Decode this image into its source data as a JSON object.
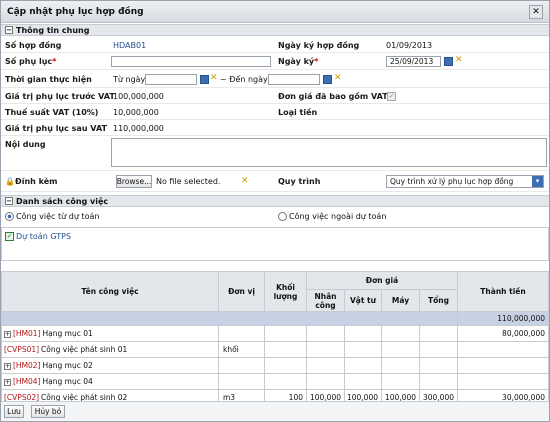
{
  "window": {
    "title": "Cập nhật phụ lục hợp đồng"
  },
  "general": {
    "section_title": "Thông tin chung",
    "contract_no_label": "Số hợp đồng",
    "contract_no": "HDAB01",
    "contract_date_label": "Ngày ký hợp đồng",
    "contract_date": "01/09/2013",
    "appendix_no_label": "Số phụ lục",
    "appendix_no": "",
    "sign_date_label": "Ngày ký",
    "sign_date": "25/09/2013",
    "period_label": "Thời gian thực hiện",
    "from_label": "Từ ngày",
    "to_label": "~ Đến ngày",
    "pre_vat_label": "Giá trị phụ lục trước VAT",
    "pre_vat": "100,000,000",
    "includes_vat_label": "Đơn giá đã bao gồm VAT",
    "vat_label": "Thuế suất VAT (10%)",
    "vat": "10,000,000",
    "currency_label": "Loại tiền",
    "post_vat_label": "Giá trị phụ lục sau VAT",
    "post_vat": "110,000,000",
    "content_label": "Nội dung",
    "attach_label": "Đính kèm",
    "browse_label": "Browse...",
    "file_label": "No file selected.",
    "process_label": "Quy trình",
    "process_value": "Quy trình xử lý phụ lục hợp đồng"
  },
  "jobs": {
    "section_title": "Danh sách công việc",
    "option_estimate": "Công việc từ dự toán",
    "option_outside": "Công việc ngoài dự toán",
    "gtps_label": "Dự toán GTPS"
  },
  "table": {
    "headers": {
      "name": "Tên công việc",
      "unit": "Đơn vị",
      "qty": "Khối lượng",
      "unit_price": "Đơn giá",
      "labor": "Nhân công",
      "material": "Vật tư",
      "machine": "Máy",
      "total": "Tổng",
      "amount": "Thành tiền"
    },
    "summary_total": "110,000,000",
    "rows": [
      {
        "expand": "+",
        "code": "[HM01]",
        "name": "Hạng mục 01",
        "unit": "",
        "qty": "",
        "labor": "",
        "material": "",
        "machine": "",
        "total": "",
        "amount": "80,000,000"
      },
      {
        "expand": "",
        "code": "[CVPS01]",
        "name": "Công việc phát sinh 01",
        "unit": "khối",
        "qty": "",
        "labor": "",
        "material": "",
        "machine": "",
        "total": "",
        "amount": ""
      },
      {
        "expand": "+",
        "code": "[HM02]",
        "name": "Hạng mục 02",
        "unit": "",
        "qty": "",
        "labor": "",
        "material": "",
        "machine": "",
        "total": "",
        "amount": ""
      },
      {
        "expand": "+",
        "code": "[HM04]",
        "name": "Hạng mục 04",
        "unit": "",
        "qty": "",
        "labor": "",
        "material": "",
        "machine": "",
        "total": "",
        "amount": ""
      },
      {
        "expand": "",
        "code": "[CVPS02]",
        "name": "Công việc phát sinh 02",
        "unit": "m3",
        "qty": "100",
        "labor": "100,000",
        "material": "100,000",
        "machine": "100,000",
        "total": "300,000",
        "amount": "30,000,000"
      }
    ]
  },
  "footer": {
    "save_label": "Lưu",
    "cancel_label": "Hủy bỏ"
  },
  "colors": {
    "accent": "#3b6fb2",
    "code_red": "#b01818",
    "header_bg": "#e3e6ea"
  }
}
